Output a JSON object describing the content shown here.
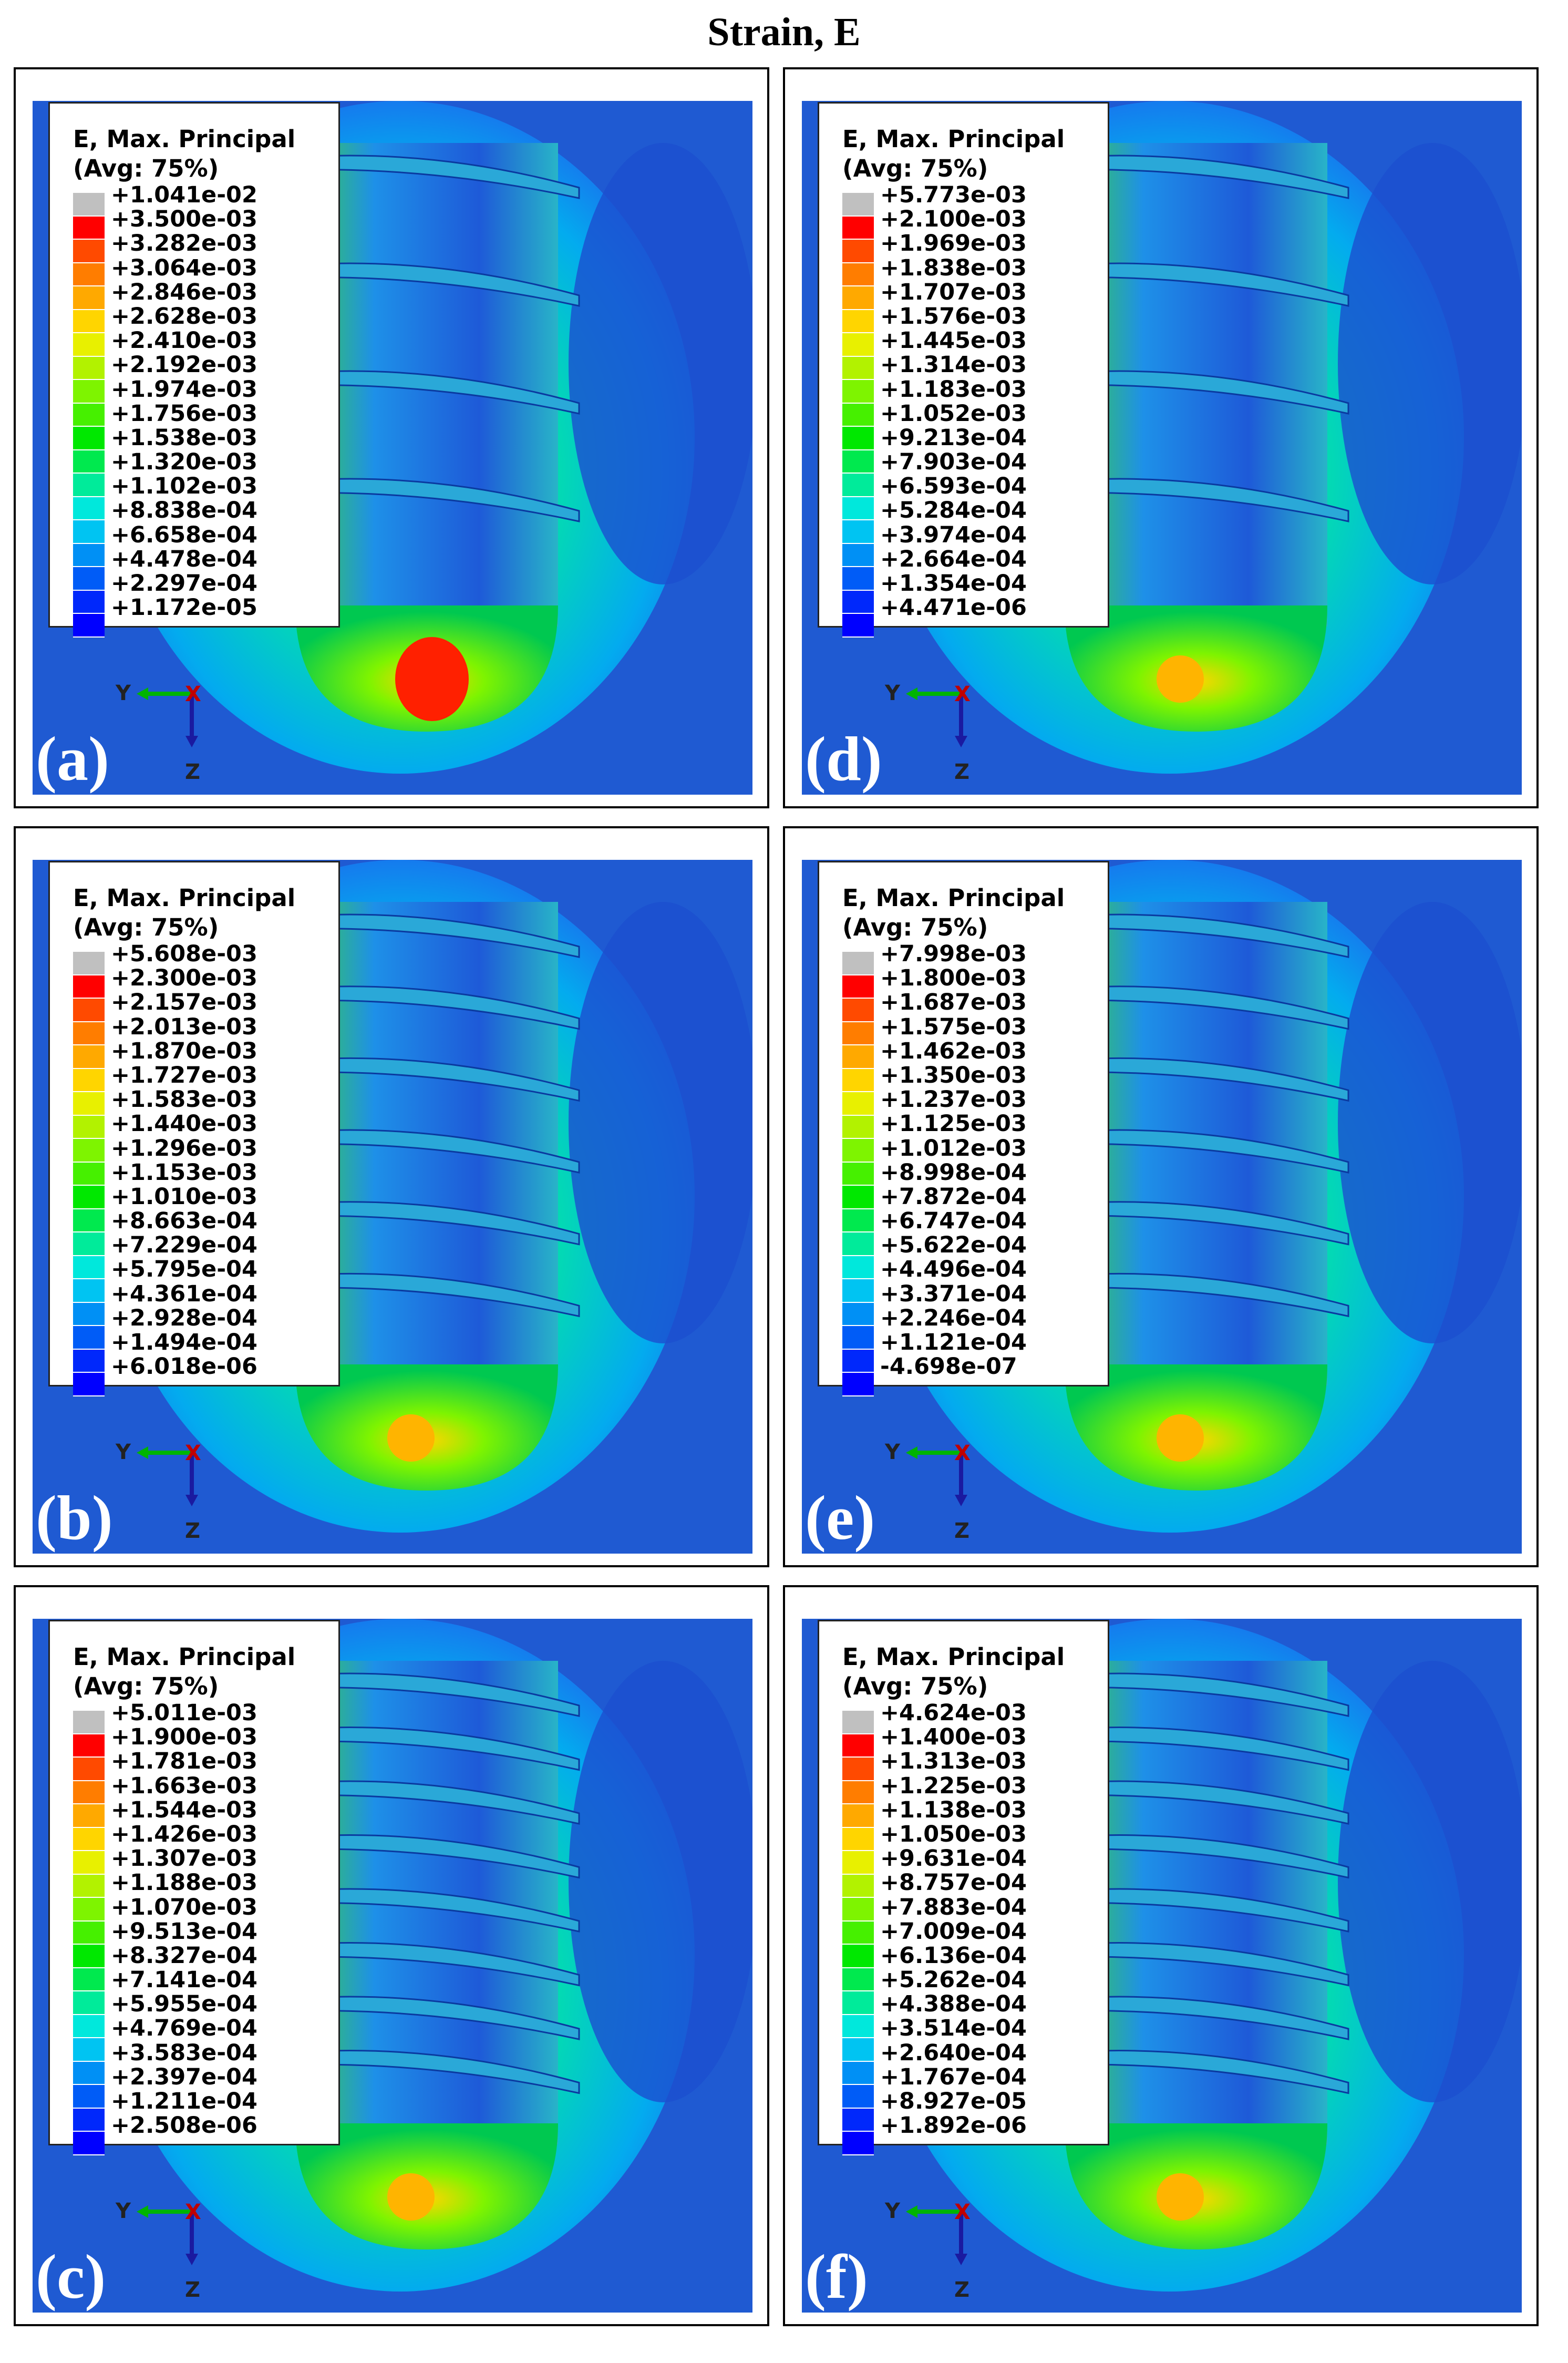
{
  "title": "Strain, E",
  "legend_header": {
    "line1": "E, Max. Principal",
    "line2": "(Avg: 75%)"
  },
  "colors": [
    "#c0c0c0",
    "#ff0000",
    "#ff4a00",
    "#ff7d00",
    "#ffa900",
    "#ffd500",
    "#e8f000",
    "#b2f200",
    "#7ef400",
    "#46f000",
    "#00e800",
    "#00e94e",
    "#00eb9a",
    "#00e8dc",
    "#00c4f2",
    "#0090f5",
    "#005cf7",
    "#0028fb",
    "#0000ff"
  ],
  "axes": {
    "y": "Y",
    "x": "X",
    "z": "Z"
  },
  "panels": [
    {
      "label": "(a)",
      "values": [
        "+1.041e-02",
        "+3.500e-03",
        "+3.282e-03",
        "+3.064e-03",
        "+2.846e-03",
        "+2.628e-03",
        "+2.410e-03",
        "+2.192e-03",
        "+1.974e-03",
        "+1.756e-03",
        "+1.538e-03",
        "+1.320e-03",
        "+1.102e-03",
        "+8.838e-04",
        "+6.658e-04",
        "+4.478e-04",
        "+2.297e-04",
        "+1.172e-05"
      ]
    },
    {
      "label": "(b)",
      "values": [
        "+5.608e-03",
        "+2.300e-03",
        "+2.157e-03",
        "+2.013e-03",
        "+1.870e-03",
        "+1.727e-03",
        "+1.583e-03",
        "+1.440e-03",
        "+1.296e-03",
        "+1.153e-03",
        "+1.010e-03",
        "+8.663e-04",
        "+7.229e-04",
        "+5.795e-04",
        "+4.361e-04",
        "+2.928e-04",
        "+1.494e-04",
        "+6.018e-06"
      ]
    },
    {
      "label": "(c)",
      "values": [
        "+5.011e-03",
        "+1.900e-03",
        "+1.781e-03",
        "+1.663e-03",
        "+1.544e-03",
        "+1.426e-03",
        "+1.307e-03",
        "+1.188e-03",
        "+1.070e-03",
        "+9.513e-04",
        "+8.327e-04",
        "+7.141e-04",
        "+5.955e-04",
        "+4.769e-04",
        "+3.583e-04",
        "+2.397e-04",
        "+1.211e-04",
        "+2.508e-06"
      ]
    },
    {
      "label": "(d)",
      "values": [
        "+5.773e-03",
        "+2.100e-03",
        "+1.969e-03",
        "+1.838e-03",
        "+1.707e-03",
        "+1.576e-03",
        "+1.445e-03",
        "+1.314e-03",
        "+1.183e-03",
        "+1.052e-03",
        "+9.213e-04",
        "+7.903e-04",
        "+6.593e-04",
        "+5.284e-04",
        "+3.974e-04",
        "+2.664e-04",
        "+1.354e-04",
        "+4.471e-06"
      ]
    },
    {
      "label": "(e)",
      "values": [
        "+7.998e-03",
        "+1.800e-03",
        "+1.687e-03",
        "+1.575e-03",
        "+1.462e-03",
        "+1.350e-03",
        "+1.237e-03",
        "+1.125e-03",
        "+1.012e-03",
        "+8.998e-04",
        "+7.872e-04",
        "+6.747e-04",
        "+5.622e-04",
        "+4.496e-04",
        "+3.371e-04",
        "+2.246e-04",
        "+1.121e-04",
        "-4.698e-07"
      ]
    },
    {
      "label": "(f)",
      "values": [
        "+4.624e-03",
        "+1.400e-03",
        "+1.313e-03",
        "+1.225e-03",
        "+1.138e-03",
        "+1.050e-03",
        "+9.631e-04",
        "+8.757e-04",
        "+7.883e-04",
        "+7.009e-04",
        "+6.136e-04",
        "+5.262e-04",
        "+4.388e-04",
        "+3.514e-04",
        "+2.640e-04",
        "+1.767e-04",
        "+8.927e-05",
        "+1.892e-06"
      ]
    }
  ]
}
